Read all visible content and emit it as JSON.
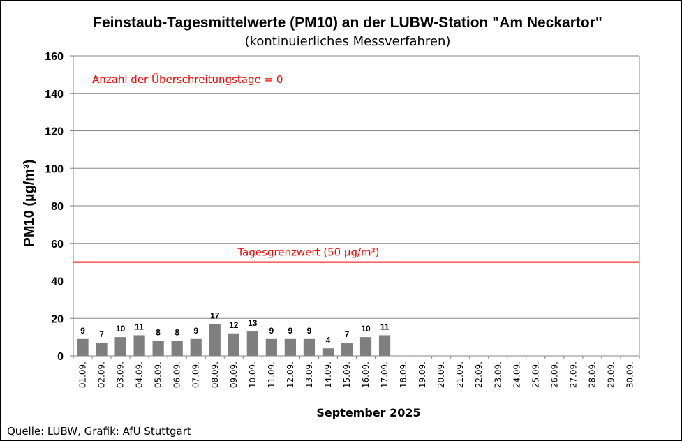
{
  "chart_data": {
    "type": "bar",
    "title": "Feinstaub-Tagesmittelwerte (PM10) an der LUBW-Station \"Am Neckartor\"",
    "subtitle": "(kontinuierliches Messverfahren)",
    "xlabel": "September 2025",
    "ylabel": "PM10 (µg/m³)",
    "ylim": [
      0,
      160
    ],
    "yticks": [
      0,
      20,
      40,
      60,
      80,
      100,
      120,
      140,
      160
    ],
    "grid": true,
    "categories": [
      "01.09.",
      "02.09.",
      "03.09.",
      "04.09.",
      "05.09.",
      "06.09.",
      "07.09.",
      "08.09.",
      "09.09.",
      "10.09.",
      "11.09.",
      "12.09.",
      "13.09.",
      "14.09.",
      "15.09.",
      "16.09.",
      "17.09.",
      "18.09.",
      "19.09.",
      "20.09.",
      "21.09.",
      "22.09.",
      "23.09.",
      "24.09.",
      "25.09.",
      "26.09.",
      "27.09.",
      "28.09.",
      "29.09.",
      "30.09."
    ],
    "values": [
      9,
      7,
      10,
      11,
      8,
      8,
      9,
      17,
      12,
      13,
      9,
      9,
      9,
      4,
      7,
      10,
      11,
      null,
      null,
      null,
      null,
      null,
      null,
      null,
      null,
      null,
      null,
      null,
      null,
      null
    ],
    "bar_color": "#7f7f7f",
    "limit_line": {
      "value": 50,
      "label": "Tagesgrenzwert (50 µg/m³)",
      "color": "#ff0000"
    },
    "annotation": {
      "text": "Anzahl der Überschreitungstage = 0",
      "color": "#ff0000"
    }
  },
  "footer": {
    "source": "Quelle: LUBW, Grafik: AfU Stuttgart"
  }
}
